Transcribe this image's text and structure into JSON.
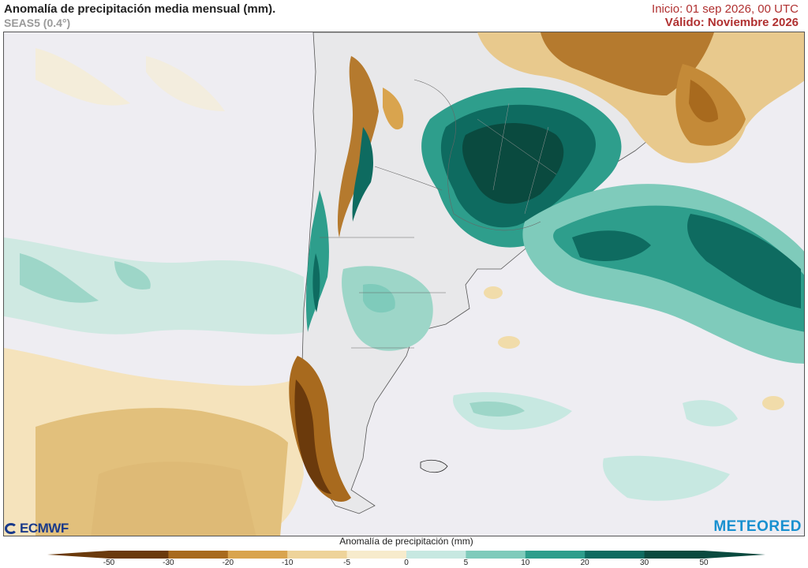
{
  "header": {
    "title": "Anomalía de precipitación media mensual (mm).",
    "subtitle": "SEAS5 (0.4°)",
    "start": "Inicio: 01 sep 2026, 00 UTC",
    "valid": "Válido: Noviembre 2026"
  },
  "logos": {
    "left": "ECMWF",
    "right": "METEORED"
  },
  "colorbar": {
    "title": "Anomalía de precipitación (mm)",
    "ticks": [
      "-50",
      "-30",
      "-20",
      "-10",
      "-5",
      "0",
      "5",
      "10",
      "20",
      "30",
      "50"
    ],
    "colors": [
      "#6b3a0c",
      "#a86a1e",
      "#d9a44e",
      "#eed39a",
      "#f7ebcc",
      "#eeedf2",
      "#c7e8e1",
      "#7fcbbb",
      "#2e9e8c",
      "#0e6b60",
      "#0a4a3f"
    ]
  }
}
